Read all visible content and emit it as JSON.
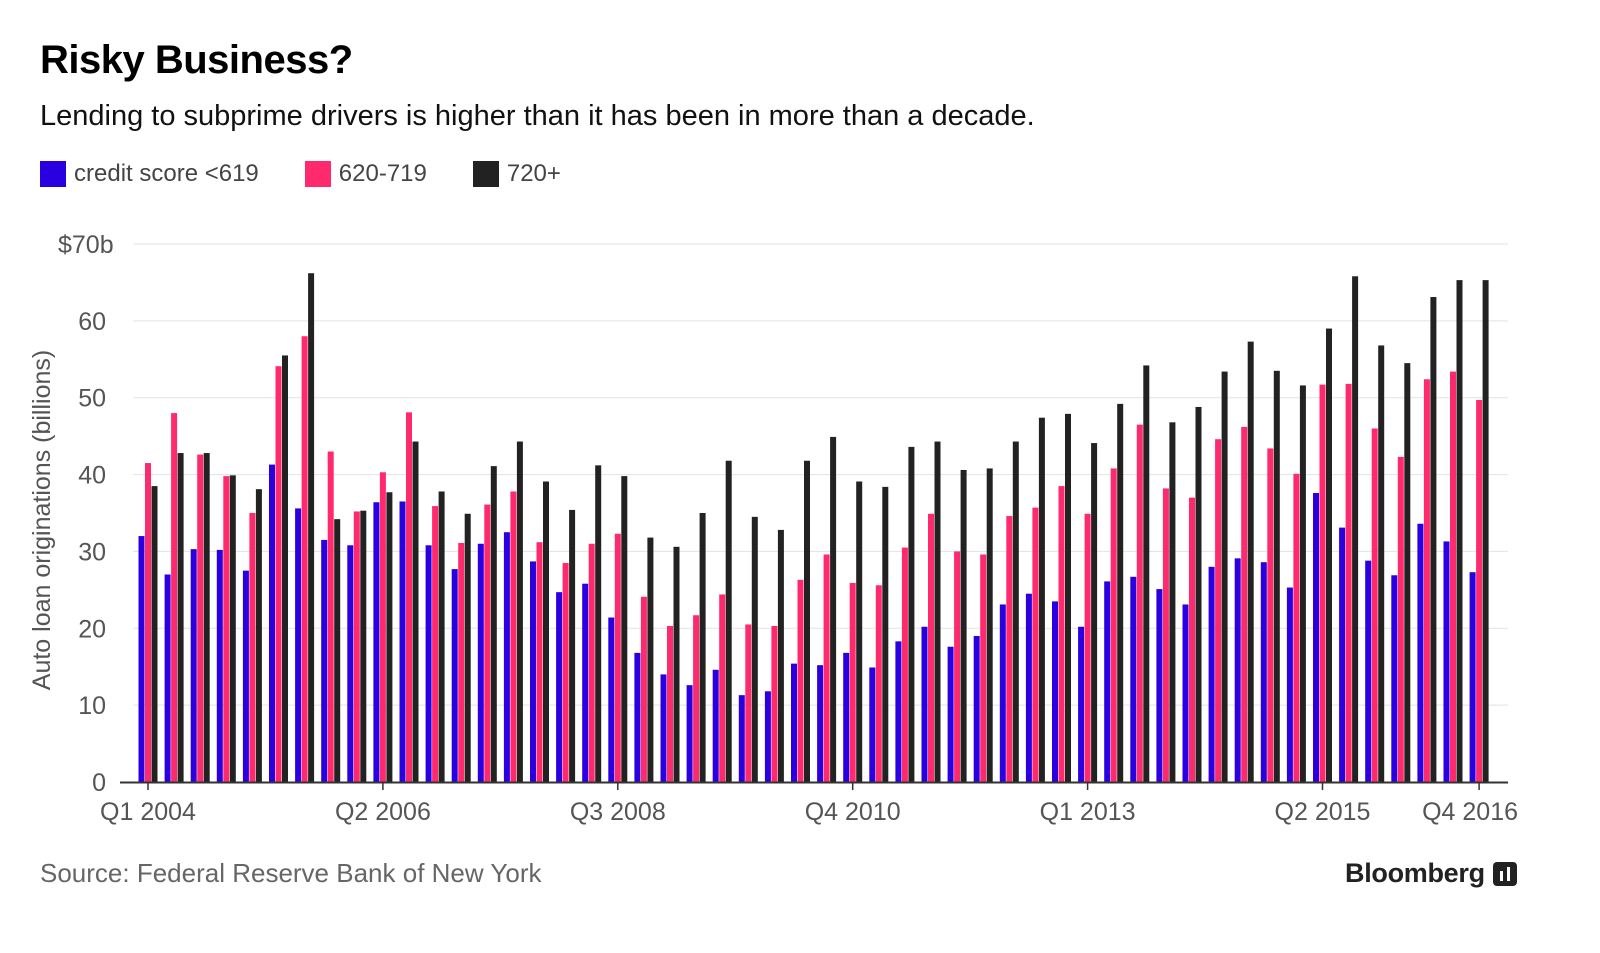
{
  "header": {
    "title": "Risky Business?",
    "subtitle": "Lending to subprime drivers is higher than it has been in more than a decade."
  },
  "footer": {
    "source": "Source: Federal Reserve Bank of New York",
    "brand": "Bloomberg"
  },
  "colors": {
    "low": "#2a00e0",
    "mid": "#ff2a6d",
    "high": "#222222",
    "grid": "#e3e3e3",
    "axis": "#333333"
  },
  "chart_data": {
    "type": "bar",
    "title": "Risky Business?",
    "ylabel": "Auto loan originations (billions)",
    "ylim": [
      0,
      70
    ],
    "yticks": [
      "0",
      "10",
      "20",
      "30",
      "40",
      "50",
      "60",
      "$70b"
    ],
    "grid": true,
    "legend_position": "top-left",
    "xtick_labels": [
      {
        "label": "Q1 2004",
        "index": 0
      },
      {
        "label": "Q2 2006",
        "index": 9
      },
      {
        "label": "Q3 2008",
        "index": 18
      },
      {
        "label": "Q4 2010",
        "index": 27
      },
      {
        "label": "Q1 2013",
        "index": 36
      },
      {
        "label": "Q2 2015",
        "index": 45
      },
      {
        "label": "Q4 2016",
        "index": 51
      }
    ],
    "categories": [
      "Q1 2004",
      "Q2 2004",
      "Q3 2004",
      "Q4 2004",
      "Q1 2005",
      "Q2 2005",
      "Q3 2005",
      "Q4 2005",
      "Q1 2006",
      "Q2 2006",
      "Q3 2006",
      "Q4 2006",
      "Q1 2007",
      "Q2 2007",
      "Q3 2007",
      "Q4 2007",
      "Q1 2008",
      "Q2 2008",
      "Q3 2008",
      "Q4 2008",
      "Q1 2009",
      "Q2 2009",
      "Q3 2009",
      "Q4 2009",
      "Q1 2010",
      "Q2 2010",
      "Q3 2010",
      "Q4 2010",
      "Q1 2011",
      "Q2 2011",
      "Q3 2011",
      "Q4 2011",
      "Q1 2012",
      "Q2 2012",
      "Q3 2012",
      "Q4 2012",
      "Q1 2013",
      "Q2 2013",
      "Q3 2013",
      "Q4 2013",
      "Q1 2014",
      "Q2 2014",
      "Q3 2014",
      "Q4 2014",
      "Q1 2015",
      "Q2 2015",
      "Q3 2015",
      "Q4 2015",
      "Q1 2016",
      "Q2 2016",
      "Q3 2016",
      "Q4 2016"
    ],
    "series": [
      {
        "name": "credit score <619",
        "color": "#2a00e0",
        "values": [
          32,
          27,
          30.3,
          30.2,
          27.5,
          41.3,
          35.6,
          31.5,
          30.8,
          36.4,
          36.5,
          30.8,
          27.7,
          31,
          32.5,
          28.7,
          24.7,
          25.8,
          21.4,
          16.8,
          14,
          12.6,
          14.6,
          11.3,
          11.8,
          15.4,
          15.2,
          16.8,
          14.9,
          18.3,
          20.2,
          17.6,
          19,
          23.1,
          24.5,
          23.5,
          20.2,
          26.1,
          26.7,
          25.1,
          23.1,
          28,
          29.1,
          28.6,
          25.3,
          37.6,
          33.1,
          28.8,
          26.9,
          33.6,
          31.3,
          27.3
        ]
      },
      {
        "name": "620-719",
        "color": "#ff2a6d",
        "values": [
          41.5,
          48,
          42.6,
          39.8,
          35,
          54.1,
          58,
          43,
          35.2,
          40.3,
          48.1,
          35.9,
          31.1,
          36.1,
          37.8,
          31.2,
          28.5,
          31,
          32.3,
          24.1,
          20.3,
          21.7,
          24.4,
          20.5,
          20.3,
          26.3,
          29.6,
          25.9,
          25.6,
          30.5,
          34.9,
          30,
          29.6,
          34.6,
          35.7,
          38.5,
          34.9,
          40.8,
          46.5,
          38.2,
          37,
          44.6,
          46.2,
          43.4,
          40.1,
          51.7,
          51.8,
          46,
          42.3,
          52.4,
          53.4,
          49.7
        ]
      },
      {
        "name": "720+",
        "color": "#222222",
        "values": [
          38.5,
          42.8,
          42.8,
          39.9,
          38.1,
          55.5,
          66.2,
          34.2,
          35.3,
          37.7,
          44.3,
          37.8,
          34.9,
          41.1,
          44.3,
          39.1,
          35.4,
          41.2,
          39.8,
          31.8,
          30.6,
          35,
          41.8,
          34.5,
          32.8,
          41.8,
          44.9,
          39.1,
          38.4,
          43.6,
          44.3,
          40.6,
          40.8,
          44.3,
          47.4,
          47.9,
          44.1,
          49.2,
          54.2,
          46.8,
          48.8,
          53.4,
          57.3,
          53.5,
          51.6,
          59,
          65.8,
          56.8,
          54.5,
          63.1,
          65.3,
          65.3
        ]
      }
    ]
  }
}
